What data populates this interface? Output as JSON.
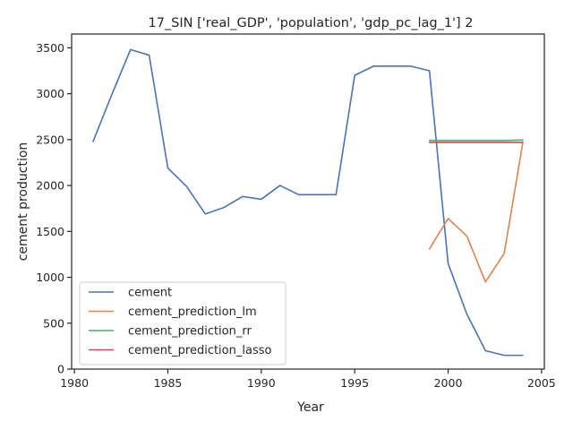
{
  "chart_data": {
    "type": "line",
    "title": "17_SIN ['real_GDP', 'population', 'gdp_pc_lag_1'] 2",
    "xlabel": "Year",
    "ylabel": "cement production",
    "xlim": [
      1979.85,
      2005.15
    ],
    "ylim": [
      0,
      3650
    ],
    "xticks": [
      1980,
      1985,
      1990,
      1995,
      2000,
      2005
    ],
    "xtick_labels": [
      "1980",
      "1985",
      "1990",
      "1995",
      "2000",
      "2005"
    ],
    "yticks": [
      0,
      500,
      1000,
      1500,
      2000,
      2500,
      3000,
      3500
    ],
    "ytick_labels": [
      "0",
      "500",
      "1000",
      "1500",
      "2000",
      "2500",
      "3000",
      "3500"
    ],
    "grid": false,
    "legend_position": "lower-left",
    "series": [
      {
        "name": "cement",
        "color": "#4c72b0",
        "x": [
          1981,
          1982,
          1983,
          1984,
          1985,
          1986,
          1987,
          1988,
          1989,
          1990,
          1991,
          1992,
          1993,
          1994,
          1995,
          1996,
          1997,
          1998,
          1999,
          2000,
          2001,
          2002,
          2003,
          2004
        ],
        "y": [
          2480,
          2990,
          3480,
          3420,
          2190,
          1990,
          1690,
          1760,
          1880,
          1850,
          2000,
          1900,
          1900,
          1900,
          3200,
          3300,
          3300,
          3300,
          3250,
          1150,
          600,
          200,
          150,
          150
        ]
      },
      {
        "name": "cement_prediction_lm",
        "color": "#dd8452",
        "x": [
          1999,
          2000,
          2001,
          2002,
          2003,
          2004
        ],
        "y": [
          1310,
          1640,
          1450,
          950,
          1260,
          2470
        ]
      },
      {
        "name": "cement_prediction_rr",
        "color": "#55a868",
        "x": [
          1999,
          2000,
          2001,
          2002,
          2003,
          2004
        ],
        "y": [
          2490,
          2490,
          2490,
          2490,
          2490,
          2495
        ]
      },
      {
        "name": "cement_prediction_lasso",
        "color": "#c44e52",
        "x": [
          1999,
          2000,
          2001,
          2002,
          2003,
          2004
        ],
        "y": [
          2470,
          2470,
          2470,
          2470,
          2470,
          2470
        ]
      }
    ]
  }
}
